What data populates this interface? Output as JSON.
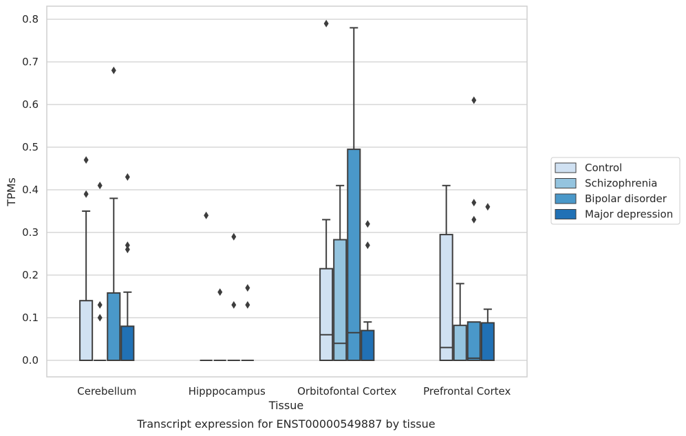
{
  "chart_data": {
    "type": "box",
    "xlabel": "Tissue",
    "ylabel": "TPMs",
    "caption": "Transcript expression for ENST00000549887 by tissue",
    "ylim": [
      -0.04,
      0.83
    ],
    "yticks": [
      0.0,
      0.1,
      0.2,
      0.3,
      0.4,
      0.5,
      0.6,
      0.7,
      0.8
    ],
    "ytick_labels": [
      "0.0",
      "0.1",
      "0.2",
      "0.3",
      "0.4",
      "0.5",
      "0.6",
      "0.7",
      "0.8"
    ],
    "grid": "horizontal",
    "legend_position": "right",
    "categories": [
      "Cerebellum",
      "Hipppocampus",
      "Orbitofontal Cortex",
      "Prefrontal Cortex"
    ],
    "series": [
      {
        "name": "Control",
        "color": "#d0e1f2",
        "boxes": [
          {
            "q1": 0.0,
            "median": 0.0,
            "q3": 0.14,
            "whislo": 0.0,
            "whishi": 0.35,
            "fliers": [
              0.47,
              0.39
            ]
          },
          {
            "q1": 0.0,
            "median": 0.0,
            "q3": 0.0,
            "whislo": 0.0,
            "whishi": 0.0,
            "fliers": [
              0.34
            ]
          },
          {
            "q1": 0.0,
            "median": 0.06,
            "q3": 0.215,
            "whislo": 0.0,
            "whishi": 0.33,
            "fliers": [
              0.79
            ]
          },
          {
            "q1": 0.0,
            "median": 0.03,
            "q3": 0.295,
            "whislo": 0.0,
            "whishi": 0.41,
            "fliers": []
          }
        ]
      },
      {
        "name": "Schizophrenia",
        "color": "#94c4df",
        "boxes": [
          {
            "q1": 0.0,
            "median": 0.0,
            "q3": 0.0,
            "whislo": 0.0,
            "whishi": 0.0,
            "fliers": [
              0.41,
              0.13,
              0.1
            ]
          },
          {
            "q1": 0.0,
            "median": 0.0,
            "q3": 0.0,
            "whislo": 0.0,
            "whishi": 0.0,
            "fliers": [
              0.16
            ]
          },
          {
            "q1": 0.0,
            "median": 0.04,
            "q3": 0.283,
            "whislo": 0.0,
            "whishi": 0.41,
            "fliers": []
          },
          {
            "q1": 0.0,
            "median": 0.0,
            "q3": 0.082,
            "whislo": 0.0,
            "whishi": 0.18,
            "fliers": []
          }
        ]
      },
      {
        "name": "Bipolar disorder",
        "color": "#4a98c9",
        "boxes": [
          {
            "q1": 0.0,
            "median": 0.0,
            "q3": 0.158,
            "whislo": 0.0,
            "whishi": 0.38,
            "fliers": [
              0.68
            ]
          },
          {
            "q1": 0.0,
            "median": 0.0,
            "q3": 0.0,
            "whislo": 0.0,
            "whishi": 0.0,
            "fliers": [
              0.29,
              0.13
            ]
          },
          {
            "q1": 0.0,
            "median": 0.065,
            "q3": 0.495,
            "whislo": 0.0,
            "whishi": 0.78,
            "fliers": []
          },
          {
            "q1": 0.0,
            "median": 0.005,
            "q3": 0.09,
            "whislo": 0.0,
            "whishi": 0.09,
            "fliers": [
              0.61,
              0.37,
              0.33
            ]
          }
        ]
      },
      {
        "name": "Major depression",
        "color": "#2171b5",
        "boxes": [
          {
            "q1": 0.0,
            "median": 0.0,
            "q3": 0.08,
            "whislo": 0.0,
            "whishi": 0.16,
            "fliers": [
              0.43,
              0.27,
              0.26
            ]
          },
          {
            "q1": 0.0,
            "median": 0.0,
            "q3": 0.0,
            "whislo": 0.0,
            "whishi": 0.0,
            "fliers": [
              0.17,
              0.13
            ]
          },
          {
            "q1": 0.0,
            "median": 0.0,
            "q3": 0.07,
            "whislo": 0.0,
            "whishi": 0.09,
            "fliers": [
              0.32,
              0.27
            ]
          },
          {
            "q1": 0.0,
            "median": 0.0,
            "q3": 0.088,
            "whislo": 0.0,
            "whishi": 0.12,
            "fliers": [
              0.36
            ]
          }
        ]
      }
    ],
    "styles": {
      "line_color": "#3d3d3d",
      "grid_color": "#cfcfcf",
      "frame_color": "#cfcfcf",
      "text_color": "#262626"
    }
  }
}
